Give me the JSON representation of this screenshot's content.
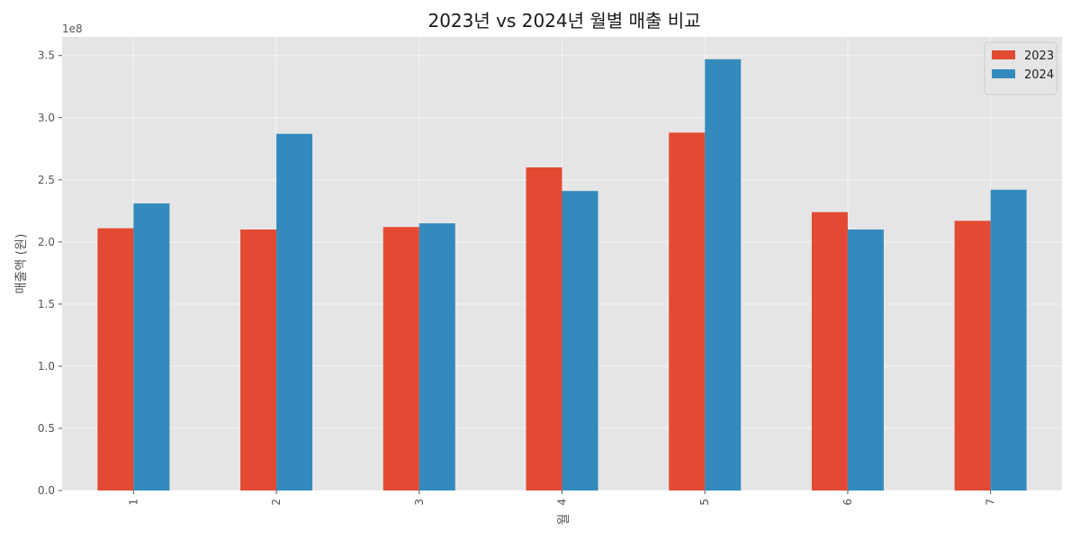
{
  "chart_data": {
    "type": "bar",
    "title": "2023년 vs 2024년 월별 매출 비교",
    "xlabel": "월",
    "ylabel": "매출액 (원)",
    "y_scale_label": "1e8",
    "categories": [
      "1",
      "2",
      "3",
      "4",
      "5",
      "6",
      "7"
    ],
    "series": [
      {
        "name": "2023",
        "color": "#E24A33",
        "values": [
          211000000,
          210000000,
          212000000,
          260000000,
          288000000,
          224000000,
          217000000
        ]
      },
      {
        "name": "2024",
        "color": "#348ABD",
        "values": [
          231000000,
          287000000,
          215000000,
          241000000,
          347000000,
          210000000,
          242000000
        ]
      }
    ],
    "ylim": [
      0,
      365000000
    ],
    "y_ticks": [
      {
        "value": 0,
        "label": "0.0"
      },
      {
        "value": 50000000,
        "label": "0.5"
      },
      {
        "value": 100000000,
        "label": "1.0"
      },
      {
        "value": 150000000,
        "label": "1.5"
      },
      {
        "value": 200000000,
        "label": "2.0"
      },
      {
        "value": 250000000,
        "label": "2.5"
      },
      {
        "value": 300000000,
        "label": "3.0"
      },
      {
        "value": 350000000,
        "label": "3.5"
      }
    ],
    "grid": true,
    "legend_position": "top-right",
    "plot_background": "#E5E5E5"
  }
}
